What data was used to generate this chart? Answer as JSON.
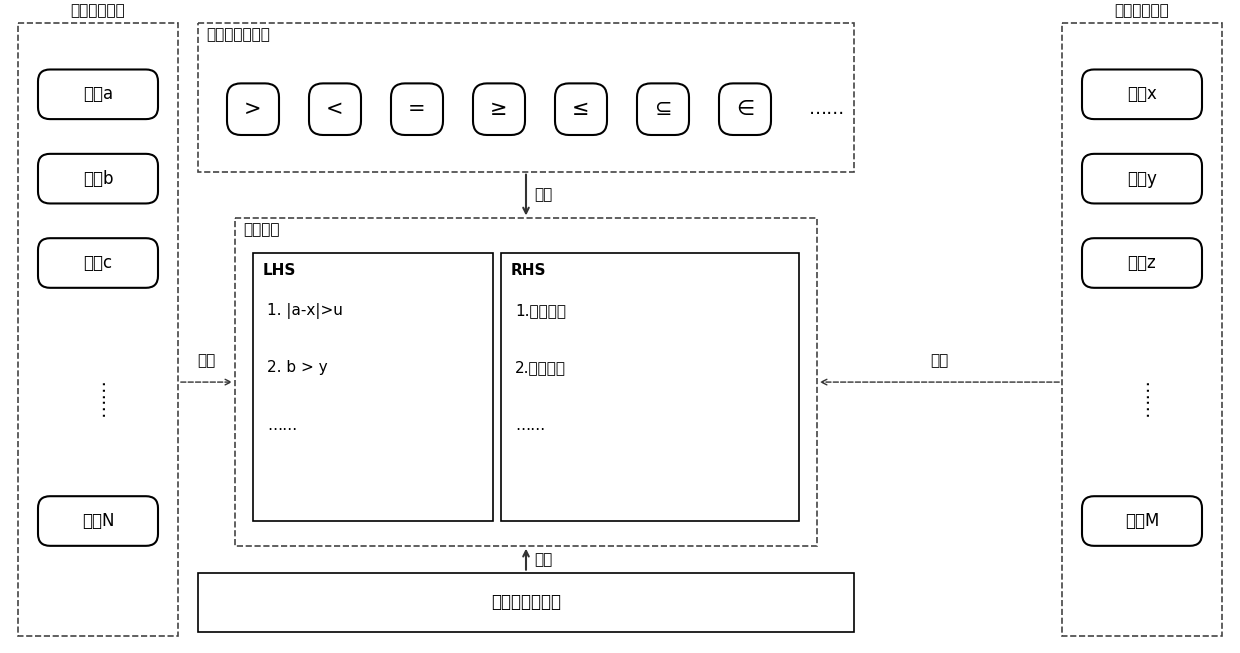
{
  "fig_width": 12.4,
  "fig_height": 6.53,
  "bg_color": "#ffffff",
  "border_color": "#000000",
  "dashed_color": "#555555",
  "left_title": "试验装备数据",
  "right_title": "配验装备数据",
  "top_title": "数据匹配操作符",
  "left_params": [
    "参数a",
    "参数b",
    "参数c",
    "参数N"
  ],
  "right_params": [
    "参数x",
    "参数y",
    "参数z",
    "参数M"
  ],
  "operators": [
    ">",
    "<",
    "=",
    "≥",
    "≤",
    "⊆",
    "∈",
    "……"
  ],
  "compare_rule_label": "比对规则",
  "lhs_label": "LHS",
  "lhs_content": [
    "1. |a-x|>u",
    "2. b > y",
    "……"
  ],
  "rhs_label": "RHS",
  "rhs_content": [
    "1.执行流程",
    "2.指标计算",
    "……"
  ],
  "bottom_box_label": "匹配规则决策库",
  "select_label": "选取"
}
